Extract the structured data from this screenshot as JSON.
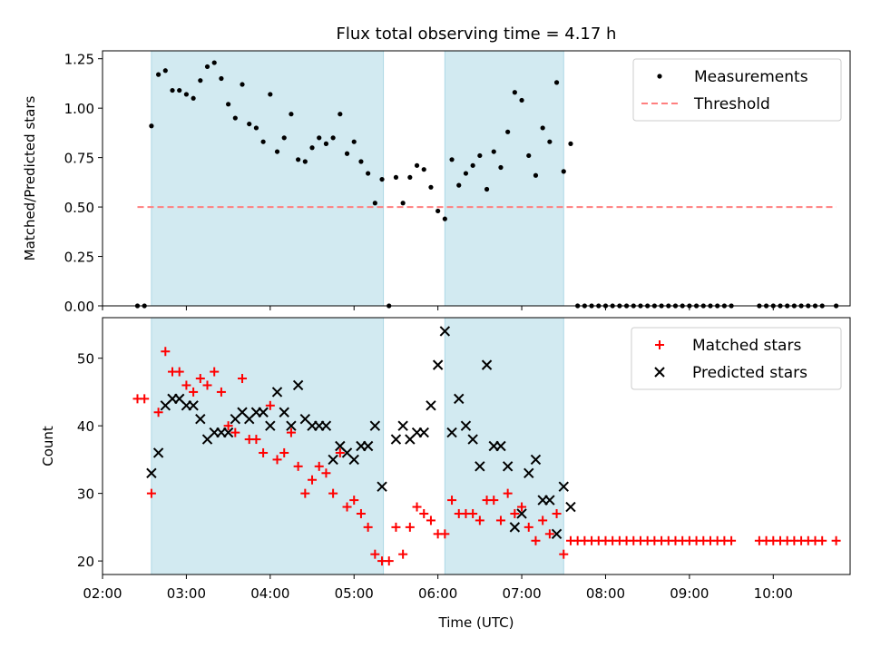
{
  "chart_data": [
    {
      "type": "scatter",
      "title": "Flux total observing time = 4.17 h",
      "xlabel": "",
      "ylabel": "Matched/Predicted stars",
      "xlim": [
        "02:00",
        "10:55"
      ],
      "ylim": [
        0,
        1.29
      ],
      "yticks": [
        "0.00",
        "0.25",
        "0.50",
        "0.75",
        "1.00",
        "1.25"
      ],
      "yticks_values": [
        0,
        0.25,
        0.5,
        0.75,
        1.0,
        1.25
      ],
      "shaded_intervals": [
        [
          "02:35",
          "05:21"
        ],
        [
          "06:05",
          "07:30"
        ]
      ],
      "shade_color": "#add8e6",
      "legend_position": "top-right",
      "series": [
        {
          "name": "Measurements",
          "marker": "dot",
          "color": "#000000",
          "points": [
            [
              "02:25",
              0.0
            ],
            [
              "02:30",
              0.0
            ],
            [
              "02:35",
              0.91
            ],
            [
              "02:40",
              1.17
            ],
            [
              "02:45",
              1.19
            ],
            [
              "02:50",
              1.09
            ],
            [
              "02:55",
              1.09
            ],
            [
              "03:00",
              1.07
            ],
            [
              "03:05",
              1.05
            ],
            [
              "03:10",
              1.14
            ],
            [
              "03:15",
              1.21
            ],
            [
              "03:20",
              1.23
            ],
            [
              "03:25",
              1.15
            ],
            [
              "03:30",
              1.02
            ],
            [
              "03:35",
              0.95
            ],
            [
              "03:40",
              1.12
            ],
            [
              "03:45",
              0.92
            ],
            [
              "03:50",
              0.9
            ],
            [
              "03:55",
              0.83
            ],
            [
              "04:00",
              1.07
            ],
            [
              "04:05",
              0.78
            ],
            [
              "04:10",
              0.85
            ],
            [
              "04:15",
              0.97
            ],
            [
              "04:20",
              0.74
            ],
            [
              "04:25",
              0.73
            ],
            [
              "04:30",
              0.8
            ],
            [
              "04:35",
              0.85
            ],
            [
              "04:40",
              0.82
            ],
            [
              "04:45",
              0.85
            ],
            [
              "04:50",
              0.97
            ],
            [
              "04:55",
              0.77
            ],
            [
              "05:00",
              0.83
            ],
            [
              "05:05",
              0.73
            ],
            [
              "05:10",
              0.67
            ],
            [
              "05:15",
              0.52
            ],
            [
              "05:20",
              0.64
            ],
            [
              "05:25",
              0.0
            ],
            [
              "05:30",
              0.65
            ],
            [
              "05:35",
              0.52
            ],
            [
              "05:40",
              0.65
            ],
            [
              "05:45",
              0.71
            ],
            [
              "05:50",
              0.69
            ],
            [
              "05:55",
              0.6
            ],
            [
              "06:00",
              0.48
            ],
            [
              "06:05",
              0.44
            ],
            [
              "06:10",
              0.74
            ],
            [
              "06:15",
              0.61
            ],
            [
              "06:20",
              0.67
            ],
            [
              "06:25",
              0.71
            ],
            [
              "06:30",
              0.76
            ],
            [
              "06:35",
              0.59
            ],
            [
              "06:40",
              0.78
            ],
            [
              "06:45",
              0.7
            ],
            [
              "06:50",
              0.88
            ],
            [
              "06:55",
              1.08
            ],
            [
              "07:00",
              1.04
            ],
            [
              "07:05",
              0.76
            ],
            [
              "07:10",
              0.66
            ],
            [
              "07:15",
              0.9
            ],
            [
              "07:20",
              0.83
            ],
            [
              "07:25",
              1.13
            ],
            [
              "07:30",
              0.68
            ],
            [
              "07:35",
              0.82
            ],
            [
              "07:40",
              0.0
            ],
            [
              "07:45",
              0.0
            ],
            [
              "07:50",
              0.0
            ],
            [
              "07:55",
              0.0
            ],
            [
              "08:00",
              0.0
            ],
            [
              "08:05",
              0.0
            ],
            [
              "08:10",
              0.0
            ],
            [
              "08:15",
              0.0
            ],
            [
              "08:20",
              0.0
            ],
            [
              "08:25",
              0.0
            ],
            [
              "08:30",
              0.0
            ],
            [
              "08:35",
              0.0
            ],
            [
              "08:40",
              0.0
            ],
            [
              "08:45",
              0.0
            ],
            [
              "08:50",
              0.0
            ],
            [
              "08:55",
              0.0
            ],
            [
              "09:00",
              0.0
            ],
            [
              "09:05",
              0.0
            ],
            [
              "09:10",
              0.0
            ],
            [
              "09:15",
              0.0
            ],
            [
              "09:20",
              0.0
            ],
            [
              "09:25",
              0.0
            ],
            [
              "09:30",
              0.0
            ],
            [
              "09:50",
              0.0
            ],
            [
              "09:55",
              0.0
            ],
            [
              "10:00",
              0.0
            ],
            [
              "10:05",
              0.0
            ],
            [
              "10:10",
              0.0
            ],
            [
              "10:15",
              0.0
            ],
            [
              "10:20",
              0.0
            ],
            [
              "10:25",
              0.0
            ],
            [
              "10:30",
              0.0
            ],
            [
              "10:35",
              0.0
            ],
            [
              "10:45",
              0.0
            ]
          ]
        },
        {
          "name": "Threshold",
          "marker": "dashed-line",
          "color": "#ff7f7f",
          "points": [
            [
              "02:25",
              0.5
            ],
            [
              "10:45",
              0.5
            ]
          ]
        }
      ]
    },
    {
      "type": "scatter",
      "title": "",
      "xlabel": "Time (UTC)",
      "ylabel": "Count",
      "xlim": [
        "02:00",
        "10:55"
      ],
      "ylim": [
        18,
        56
      ],
      "yticks": [
        "20",
        "30",
        "40",
        "50"
      ],
      "yticks_values": [
        20,
        30,
        40,
        50
      ],
      "xticks": [
        "02:00",
        "03:00",
        "04:00",
        "05:00",
        "06:00",
        "07:00",
        "08:00",
        "09:00",
        "10:00"
      ],
      "shaded_intervals": [
        [
          "02:35",
          "05:21"
        ],
        [
          "06:05",
          "07:30"
        ]
      ],
      "shade_color": "#add8e6",
      "legend_position": "top-right",
      "series": [
        {
          "name": "Matched stars",
          "marker": "plus",
          "color": "#ff0000",
          "points": [
            [
              "02:25",
              44
            ],
            [
              "02:30",
              44
            ],
            [
              "02:35",
              30
            ],
            [
              "02:40",
              42
            ],
            [
              "02:45",
              51
            ],
            [
              "02:50",
              48
            ],
            [
              "02:55",
              48
            ],
            [
              "03:00",
              46
            ],
            [
              "03:05",
              45
            ],
            [
              "03:10",
              47
            ],
            [
              "03:15",
              46
            ],
            [
              "03:20",
              48
            ],
            [
              "03:25",
              45
            ],
            [
              "03:30",
              40
            ],
            [
              "03:35",
              39
            ],
            [
              "03:40",
              47
            ],
            [
              "03:45",
              38
            ],
            [
              "03:50",
              38
            ],
            [
              "03:55",
              36
            ],
            [
              "04:00",
              43
            ],
            [
              "04:05",
              35
            ],
            [
              "04:10",
              36
            ],
            [
              "04:15",
              39
            ],
            [
              "04:20",
              34
            ],
            [
              "04:25",
              30
            ],
            [
              "04:30",
              32
            ],
            [
              "04:35",
              34
            ],
            [
              "04:40",
              33
            ],
            [
              "04:45",
              30
            ],
            [
              "04:50",
              36
            ],
            [
              "04:55",
              28
            ],
            [
              "05:00",
              29
            ],
            [
              "05:05",
              27
            ],
            [
              "05:10",
              25
            ],
            [
              "05:15",
              21
            ],
            [
              "05:20",
              20
            ],
            [
              "05:25",
              20
            ],
            [
              "05:30",
              25
            ],
            [
              "05:35",
              21
            ],
            [
              "05:40",
              25
            ],
            [
              "05:45",
              28
            ],
            [
              "05:50",
              27
            ],
            [
              "05:55",
              26
            ],
            [
              "06:00",
              24
            ],
            [
              "06:05",
              24
            ],
            [
              "06:10",
              29
            ],
            [
              "06:15",
              27
            ],
            [
              "06:20",
              27
            ],
            [
              "06:25",
              27
            ],
            [
              "06:30",
              26
            ],
            [
              "06:35",
              29
            ],
            [
              "06:40",
              29
            ],
            [
              "06:45",
              26
            ],
            [
              "06:50",
              30
            ],
            [
              "06:55",
              27
            ],
            [
              "07:00",
              28
            ],
            [
              "07:05",
              25
            ],
            [
              "07:10",
              23
            ],
            [
              "07:15",
              26
            ],
            [
              "07:20",
              24
            ],
            [
              "07:25",
              27
            ],
            [
              "07:30",
              21
            ],
            [
              "07:35",
              23
            ],
            [
              "07:40",
              23
            ],
            [
              "07:45",
              23
            ],
            [
              "07:50",
              23
            ],
            [
              "07:55",
              23
            ],
            [
              "08:00",
              23
            ],
            [
              "08:05",
              23
            ],
            [
              "08:10",
              23
            ],
            [
              "08:15",
              23
            ],
            [
              "08:20",
              23
            ],
            [
              "08:25",
              23
            ],
            [
              "08:30",
              23
            ],
            [
              "08:35",
              23
            ],
            [
              "08:40",
              23
            ],
            [
              "08:45",
              23
            ],
            [
              "08:50",
              23
            ],
            [
              "08:55",
              23
            ],
            [
              "09:00",
              23
            ],
            [
              "09:05",
              23
            ],
            [
              "09:10",
              23
            ],
            [
              "09:15",
              23
            ],
            [
              "09:20",
              23
            ],
            [
              "09:25",
              23
            ],
            [
              "09:30",
              23
            ],
            [
              "09:50",
              23
            ],
            [
              "09:55",
              23
            ],
            [
              "10:00",
              23
            ],
            [
              "10:05",
              23
            ],
            [
              "10:10",
              23
            ],
            [
              "10:15",
              23
            ],
            [
              "10:20",
              23
            ],
            [
              "10:25",
              23
            ],
            [
              "10:30",
              23
            ],
            [
              "10:35",
              23
            ],
            [
              "10:45",
              23
            ]
          ]
        },
        {
          "name": "Predicted stars",
          "marker": "x",
          "color": "#000000",
          "points": [
            [
              "02:35",
              33
            ],
            [
              "02:40",
              36
            ],
            [
              "02:45",
              43
            ],
            [
              "02:50",
              44
            ],
            [
              "02:55",
              44
            ],
            [
              "03:00",
              43
            ],
            [
              "03:05",
              43
            ],
            [
              "03:10",
              41
            ],
            [
              "03:15",
              38
            ],
            [
              "03:20",
              39
            ],
            [
              "03:25",
              39
            ],
            [
              "03:30",
              39
            ],
            [
              "03:35",
              41
            ],
            [
              "03:40",
              42
            ],
            [
              "03:45",
              41
            ],
            [
              "03:50",
              42
            ],
            [
              "03:55",
              42
            ],
            [
              "04:00",
              40
            ],
            [
              "04:05",
              45
            ],
            [
              "04:10",
              42
            ],
            [
              "04:15",
              40
            ],
            [
              "04:20",
              46
            ],
            [
              "04:25",
              41
            ],
            [
              "04:30",
              40
            ],
            [
              "04:35",
              40
            ],
            [
              "04:40",
              40
            ],
            [
              "04:45",
              35
            ],
            [
              "04:50",
              37
            ],
            [
              "04:55",
              36
            ],
            [
              "05:00",
              35
            ],
            [
              "05:05",
              37
            ],
            [
              "05:10",
              37
            ],
            [
              "05:15",
              40
            ],
            [
              "05:20",
              31
            ],
            [
              "05:30",
              38
            ],
            [
              "05:35",
              40
            ],
            [
              "05:40",
              38
            ],
            [
              "05:45",
              39
            ],
            [
              "05:50",
              39
            ],
            [
              "05:55",
              43
            ],
            [
              "06:00",
              49
            ],
            [
              "06:05",
              54
            ],
            [
              "06:10",
              39
            ],
            [
              "06:15",
              44
            ],
            [
              "06:20",
              40
            ],
            [
              "06:25",
              38
            ],
            [
              "06:30",
              34
            ],
            [
              "06:35",
              49
            ],
            [
              "06:40",
              37
            ],
            [
              "06:45",
              37
            ],
            [
              "06:50",
              34
            ],
            [
              "06:55",
              25
            ],
            [
              "07:00",
              27
            ],
            [
              "07:05",
              33
            ],
            [
              "07:10",
              35
            ],
            [
              "07:15",
              29
            ],
            [
              "07:20",
              29
            ],
            [
              "07:25",
              24
            ],
            [
              "07:30",
              31
            ],
            [
              "07:35",
              28
            ]
          ]
        }
      ]
    }
  ]
}
